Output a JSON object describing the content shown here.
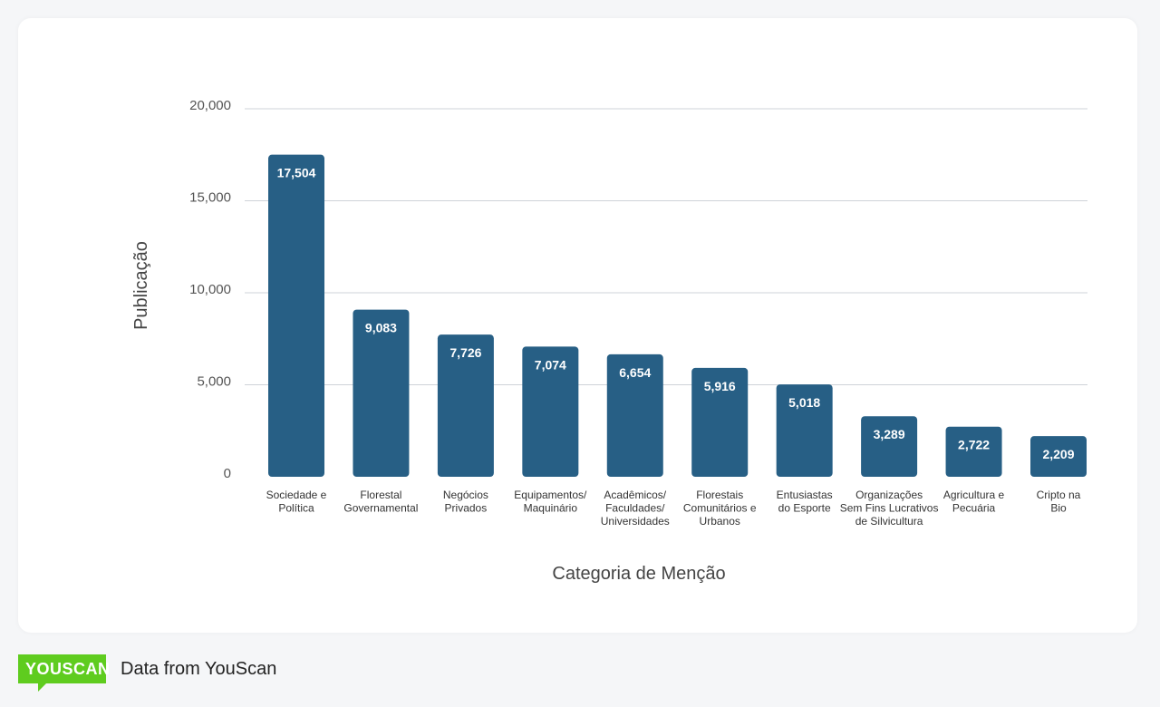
{
  "chart_data": {
    "type": "bar",
    "categories": [
      [
        "Sociedade e",
        "Política"
      ],
      [
        "Florestal",
        "Governamental"
      ],
      [
        "Negócios",
        "Privados"
      ],
      [
        "Equipamentos/",
        "Maquinário"
      ],
      [
        "Acadêmicos/",
        "Faculdades/",
        "Universidades"
      ],
      [
        "Florestais",
        "Comunitários e",
        "Urbanos"
      ],
      [
        "Entusiastas",
        "do Esporte"
      ],
      [
        "Organizações",
        "Sem Fins Lucrativos",
        "de Silvicultura"
      ],
      [
        "Agricultura e",
        "Pecuária"
      ],
      [
        "Cripto na",
        "Bio"
      ]
    ],
    "values": [
      17504,
      9083,
      7726,
      7074,
      6654,
      5916,
      5018,
      3289,
      2722,
      2209
    ],
    "value_labels": [
      "17,504",
      "9,083",
      "7,726",
      "7,074",
      "6,654",
      "5,916",
      "5,018",
      "3,289",
      "2,722",
      "2,209"
    ],
    "xlabel": "Categoria de Menção",
    "ylabel": "Publicação",
    "ylim": [
      0,
      20000
    ],
    "yticks": [
      0,
      5000,
      10000,
      15000,
      20000
    ],
    "ytick_labels": [
      "0",
      "5,000",
      "10,000",
      "15,000",
      "20,000"
    ],
    "grid": true,
    "bar_color": "#275f85",
    "grid_color": "#cfd3d8"
  },
  "footer": {
    "logo_text": "YOUSCAN",
    "source_text": "Data from YouScan",
    "logo_color": "#5fcc1f"
  }
}
